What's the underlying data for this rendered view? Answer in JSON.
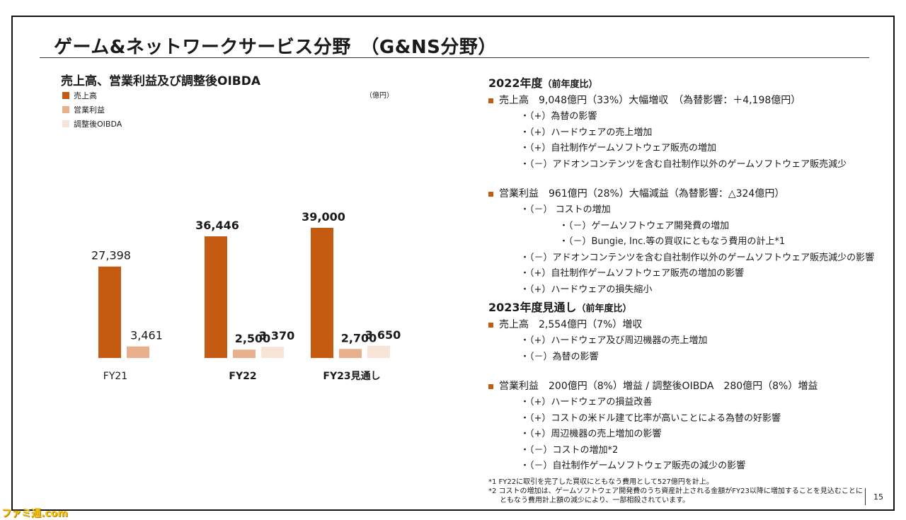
{
  "slide": {
    "title": "ゲーム&ネットワークサービス分野　（G&NS分野）",
    "page_number": "15",
    "watermark": "ファミ通.com"
  },
  "chart_data": {
    "type": "bar",
    "title": "売上高、営業利益及び調整後OIBDA",
    "unit": "（億円）",
    "categories": [
      "FY21",
      "FY22",
      "FY23見通し"
    ],
    "series": [
      {
        "name": "売上高",
        "color": "#c55a11",
        "values": [
          27398,
          36446,
          39000
        ],
        "labels": [
          "27,398",
          "36,446",
          "39,000"
        ]
      },
      {
        "name": "営業利益",
        "color": "#e8b08d",
        "values": [
          3461,
          2500,
          2700
        ],
        "labels": [
          "3,461",
          "2,500",
          "2,700"
        ]
      },
      {
        "name": "調整後OIBDA",
        "color": "#f7e4d6",
        "values": [
          null,
          3370,
          3650
        ],
        "labels": [
          "",
          "3,370",
          "3,650"
        ]
      }
    ]
  },
  "right": {
    "s1_title": "2022年度",
    "s1_sub": "（前年度比）",
    "s1_b1": "売上高　9,048億円（33%）大幅増収　（為替影響：＋4,198億円）",
    "s1_b1_items": [
      "・（+）為替の影響",
      "・（+）ハードウェアの売上増加",
      "・（+）自社制作ゲームソフトウェア販売の増加",
      "・（－）アドオンコンテンツを含む自社制作以外のゲームソフトウェア販売減少"
    ],
    "s1_b2": "営業利益　961億円（28%）大幅減益（為替影響：△324億円）",
    "s1_b2_a": "・（－） コストの増加",
    "s1_b2_a1": "・（－）ゲームソフトウェア開発費の増加",
    "s1_b2_a2": "・（－）Bungie, Inc.等の買収にともなう費用の計上*1",
    "s1_b2_rest": [
      "・（－）アドオンコンテンツを含む自社制作以外のゲームソフトウェア販売減少の影響",
      "・（+）自社制作ゲームソフトウェア販売の増加の影響",
      "・（+）ハードウェアの損失縮小"
    ],
    "s2_title": "2023年度見通し",
    "s2_sub": "（前年度比）",
    "s2_b1": "売上高　2,554億円（7%）増収",
    "s2_b1_items": [
      "・（+）ハードウェア及び周辺機器の売上増加",
      "・（－）為替の影響"
    ],
    "s2_b2": "営業利益　200億円（8%）増益 / 調整後OIBDA　280億円（8%）増益",
    "s2_b2_items": [
      "・（+）ハードウェアの損益改善",
      "・（+）コストの米ドル建て比率が高いことによる為替の好影響",
      "・（+）周辺機器の売上増加の影響",
      "・（－）コストの増加*2",
      "・（－）自社制作ゲームソフトウェア販売の減少の影響"
    ]
  },
  "footnotes": {
    "n1": "*1 FY22に取引を完了した買収にともなう費用として527億円を計上。",
    "n2": "*2 コストの増加は、ゲームソフトウェア開発費のうち資産計上される金額がFY23以降に増加することを見込むことに",
    "n2_cont": "ともなう費用計上額の減少により、一部相殺されています。"
  }
}
